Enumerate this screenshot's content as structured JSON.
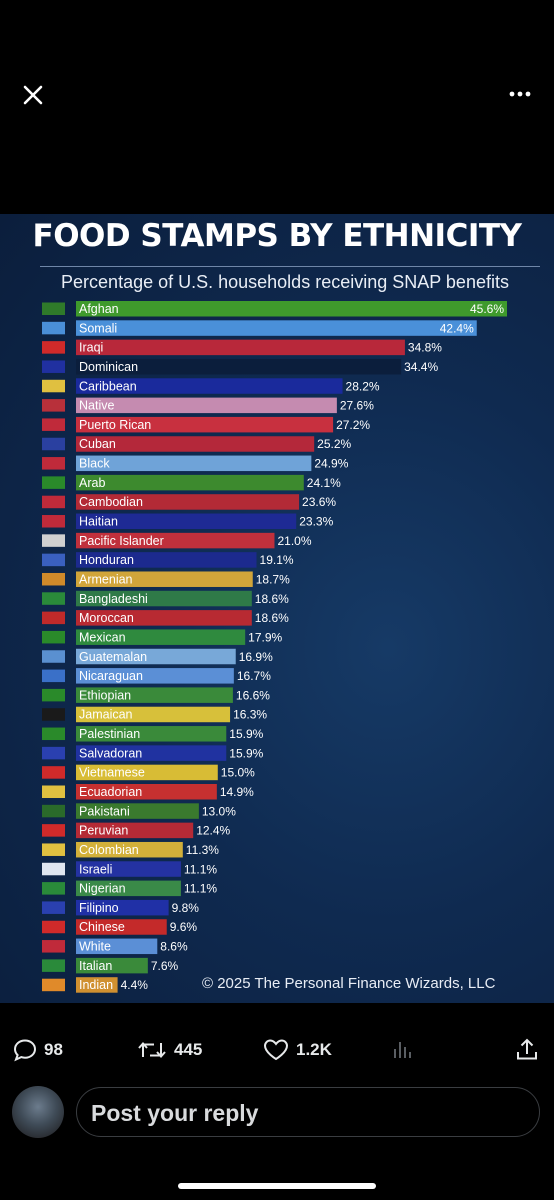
{
  "topbar": {
    "close_icon": "close-icon",
    "more_icon": "more-icon"
  },
  "infographic": {
    "title": "FOOD STAMPS BY ETHNICITY",
    "subtitle": "Percentage of U.S. households receiving SNAP benefits",
    "copyright": "© 2025 The Personal Finance Wizards, LLC"
  },
  "chart_data": {
    "type": "bar",
    "orientation": "horizontal",
    "title": "FOOD STAMPS BY ETHNICITY",
    "subtitle": "Percentage of U.S. households receiving SNAP benefits",
    "xlim": [
      0,
      45.6
    ],
    "grid": false,
    "categories": [
      "Afghan",
      "Somali",
      "Iraqi",
      "Dominican",
      "Caribbean",
      "Native",
      "Puerto Rican",
      "Cuban",
      "Black",
      "Arab",
      "Cambodian",
      "Haitian",
      "Pacific Islander",
      "Honduran",
      "Armenian",
      "Bangladeshi",
      "Moroccan",
      "Mexican",
      "Guatemalan",
      "Nicaraguan",
      "Ethiopian",
      "Jamaican",
      "Palestinian",
      "Salvadoran",
      "Vietnamese",
      "Ecuadorian",
      "Pakistani",
      "Peruvian",
      "Colombian",
      "Israeli",
      "Nigerian",
      "Filipino",
      "Chinese",
      "White",
      "Italian",
      "Indian"
    ],
    "values": [
      45.6,
      42.4,
      34.8,
      34.4,
      28.2,
      27.6,
      27.2,
      25.2,
      24.9,
      24.1,
      23.6,
      23.3,
      21.0,
      19.1,
      18.7,
      18.6,
      18.6,
      17.9,
      16.9,
      16.7,
      16.6,
      16.3,
      15.9,
      15.9,
      15.0,
      14.9,
      13.0,
      12.4,
      11.3,
      11.1,
      11.1,
      9.8,
      9.6,
      8.6,
      7.6,
      4.4
    ],
    "value_labels": [
      "45.6%",
      "42.4%",
      "34.8%",
      "34.4%",
      "28.2%",
      "27.6%",
      "27.2%",
      "25.2%",
      "24.9%",
      "24.1%",
      "23.6%",
      "23.3%",
      "21.0%",
      "19.1%",
      "18.7%",
      "18.6%",
      "18.6%",
      "17.9%",
      "16.9%",
      "16.7%",
      "16.6%",
      "16.3%",
      "15.9%",
      "15.9%",
      "15.0%",
      "14.9%",
      "13.0%",
      "12.4%",
      "11.3%",
      "11.1%",
      "11.1%",
      "9.8%",
      "9.6%",
      "8.6%",
      "7.6%",
      "4.4%"
    ],
    "bar_colors": [
      "#3f9a2c",
      "#4a90d9",
      "#b8283a",
      "#0b1e3c",
      "#1a2a9c",
      "#c58bb0",
      "#c8303f",
      "#b4283a",
      "#6fa3d8",
      "#3d8a2e",
      "#b32a36",
      "#1e2a94",
      "#c0303c",
      "#1c2a8e",
      "#d1a53a",
      "#2f7a48",
      "#b82a32",
      "#2f8a3e",
      "#78a8d8",
      "#5b8fd6",
      "#3a8a3a",
      "#d7c03a",
      "#3a8a3a",
      "#2032a0",
      "#d8bc35",
      "#c63030",
      "#3a7a2e",
      "#b52a36",
      "#d2b03a",
      "#2432a2",
      "#3a8a48",
      "#2030a6",
      "#c42a2a",
      "#5b8fd6",
      "#3a8a3a",
      "#d09030"
    ],
    "flag_colors": [
      "#2f7a2a",
      "#4a8fd8",
      "#d02a2a",
      "#2030a0",
      "#e0c040",
      "#b8303a",
      "#c02a3a",
      "#2a40a0",
      "#c02a3a",
      "#2a8a2a",
      "#c02a3a",
      "#c02a3a",
      "#d0d0d0",
      "#3a60c0",
      "#d08a2a",
      "#2a8a3a",
      "#c02a2a",
      "#2a8a2a",
      "#5a90d0",
      "#3a70c8",
      "#2a8a2a",
      "#1a1a1a",
      "#2a8a2a",
      "#2a40b0",
      "#d02a2a",
      "#e0c040",
      "#2a6a2a",
      "#d02a2a",
      "#e0c040",
      "#dfe6f0",
      "#2a8a3a",
      "#2a40b0",
      "#d02a2a",
      "#c02a3a",
      "#2a8a3a",
      "#e08a2a"
    ]
  },
  "actions": {
    "replies": "98",
    "reposts": "445",
    "likes": "1.2K",
    "reply_icon": "reply-icon",
    "repost_icon": "repost-icon",
    "like_icon": "heart-icon",
    "views_icon": "views-icon",
    "share_icon": "share-icon"
  },
  "reply": {
    "placeholder": "Post your reply"
  }
}
